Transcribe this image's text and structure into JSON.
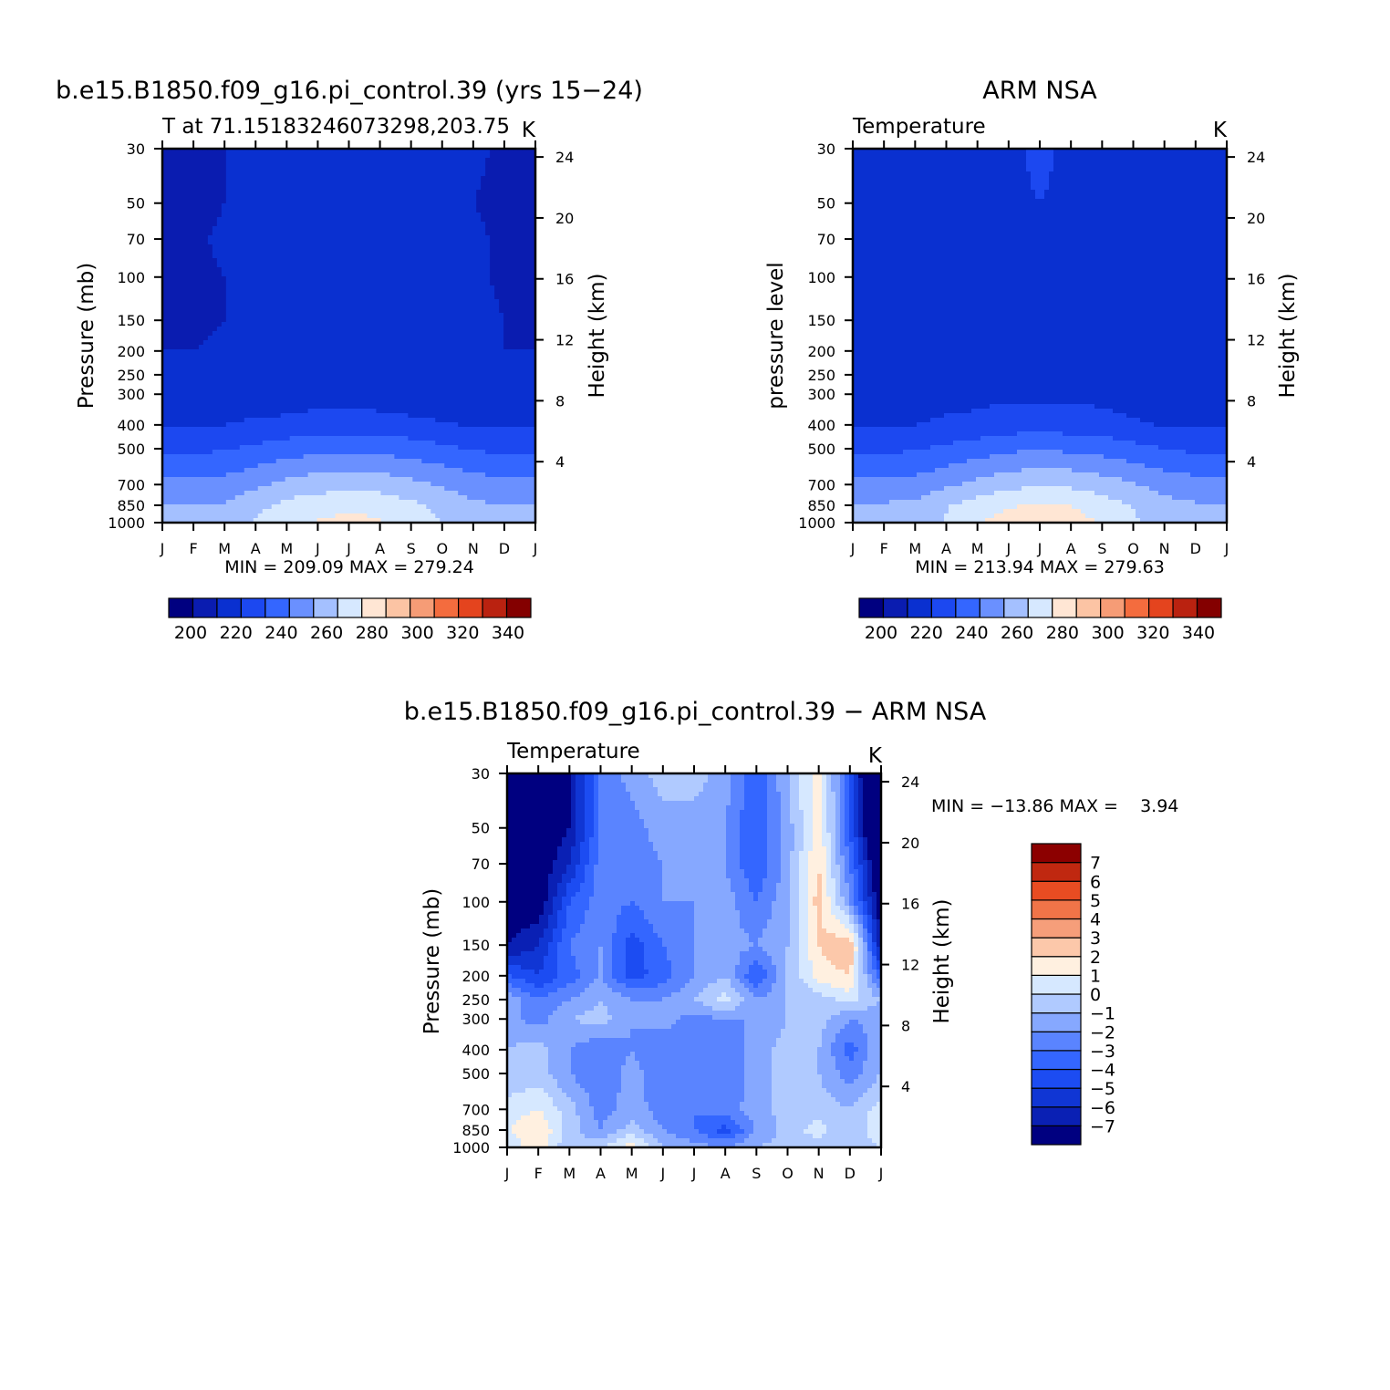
{
  "colors": {
    "abs_levels": [
      "#000080",
      "#0a1cb0",
      "#0a30d0",
      "#1c48f0",
      "#3466ff",
      "#6a90ff",
      "#a4c0ff",
      "#d6e8ff",
      "#ffe6d4",
      "#fcc4a4",
      "#f69c76",
      "#f46c3e",
      "#e4441e",
      "#ba2210",
      "#840000"
    ],
    "diff_levels": [
      "#000080",
      "#0a20b4",
      "#1036d4",
      "#1c4cf2",
      "#3466ff",
      "#5a84ff",
      "#86a8ff",
      "#b0caff",
      "#d6e8ff",
      "#fff0e0",
      "#fcc8aa",
      "#f69e7a",
      "#f07448",
      "#e84c22",
      "#c02810",
      "#8c0000"
    ]
  },
  "chart_data": [
    {
      "type": "heatmap",
      "title": "b.e15.B1850.f09_g16.pi_control.39 (yrs 15−24)",
      "subtitle_left": "T at 71.15183246073298,203.75",
      "subtitle_right": "K",
      "ylabel": "Pressure (mb)",
      "ylabel_right": "Height (km)",
      "x_ticks": [
        "J",
        "F",
        "M",
        "A",
        "M",
        "J",
        "J",
        "A",
        "S",
        "O",
        "N",
        "D",
        "J"
      ],
      "y_ticks": [
        "30",
        "50",
        "70",
        "100",
        "150",
        "200",
        "250",
        "300",
        "400",
        "500",
        "700",
        "850",
        "1000"
      ],
      "y_right_ticks": [
        "24",
        "20",
        "16",
        "12",
        "8",
        "4"
      ],
      "minmax": "MIN = 209.09 MAX = 279.24",
      "colorbar": {
        "orientation": "horizontal",
        "labels": [
          "200",
          "220",
          "240",
          "260",
          "280",
          "300",
          "320",
          "340"
        ]
      },
      "grid": false,
      "contour_data": {
        "x_months": [
          0,
          1,
          2,
          3,
          4,
          5,
          6,
          7,
          8,
          9,
          10,
          11,
          12
        ],
        "pressure_levels": [
          30,
          50,
          70,
          100,
          150,
          200,
          250,
          300,
          400,
          500,
          700,
          850,
          1000
        ],
        "values": [
          [
            208,
            212,
            215,
            220,
            221,
            221,
            220,
            220,
            220,
            219,
            216,
            214,
            208
          ],
          [
            210,
            213,
            215,
            220,
            222,
            222,
            222,
            222,
            221,
            219,
            215,
            214,
            210
          ],
          [
            212,
            214,
            216,
            219,
            222,
            222,
            222,
            222,
            221,
            219,
            216,
            214,
            212
          ],
          [
            213,
            214,
            215,
            218,
            221,
            222,
            222,
            221,
            220,
            218,
            216,
            214,
            213
          ],
          [
            214,
            214,
            215,
            219,
            223,
            223,
            223,
            223,
            222,
            220,
            217,
            215,
            214
          ],
          [
            215,
            215,
            216,
            218,
            223,
            224,
            224,
            224,
            222,
            219,
            217,
            215,
            215
          ],
          [
            216,
            216,
            216,
            217,
            218,
            220,
            220,
            219,
            217,
            216,
            216,
            216,
            216
          ],
          [
            217,
            217,
            218,
            218,
            219,
            220,
            220,
            219,
            218,
            218,
            217,
            217,
            217
          ],
          [
            224,
            224,
            225,
            227,
            228,
            230,
            230,
            230,
            228,
            226,
            224,
            224,
            224
          ],
          [
            233,
            233,
            234,
            237,
            240,
            242,
            243,
            242,
            240,
            237,
            234,
            233,
            233
          ],
          [
            248,
            248,
            249,
            253,
            258,
            261,
            262,
            261,
            258,
            254,
            250,
            248,
            248
          ],
          [
            255,
            255,
            256,
            262,
            268,
            270,
            272,
            271,
            267,
            262,
            257,
            255,
            255
          ],
          [
            258,
            258,
            259,
            266,
            272,
            276,
            279,
            276,
            271,
            265,
            259,
            258,
            258
          ]
        ]
      }
    },
    {
      "type": "heatmap",
      "title": "ARM NSA",
      "subtitle_left": "Temperature",
      "subtitle_right": "K",
      "ylabel": "pressure level",
      "ylabel_right": "Height (km)",
      "x_ticks": [
        "J",
        "F",
        "M",
        "A",
        "M",
        "J",
        "J",
        "A",
        "S",
        "O",
        "N",
        "D",
        "J"
      ],
      "y_ticks": [
        "30",
        "50",
        "70",
        "100",
        "150",
        "200",
        "250",
        "300",
        "400",
        "500",
        "700",
        "850",
        "1000"
      ],
      "y_right_ticks": [
        "24",
        "20",
        "16",
        "12",
        "8",
        "4"
      ],
      "minmax": "MIN = 213.94 MAX = 279.63",
      "colorbar": {
        "orientation": "horizontal",
        "labels": [
          "200",
          "220",
          "240",
          "260",
          "280",
          "300",
          "320",
          "340"
        ]
      },
      "grid": false,
      "contour_data": {
        "x_months": [
          0,
          1,
          2,
          3,
          4,
          5,
          6,
          7,
          8,
          9,
          10,
          11,
          12
        ],
        "pressure_levels": [
          30,
          50,
          70,
          100,
          150,
          200,
          250,
          300,
          400,
          500,
          700,
          850,
          1000
        ],
        "values": [
          [
            221,
            221,
            222,
            223,
            224,
            224,
            226,
            224,
            224,
            222,
            219,
            218,
            221
          ],
          [
            221,
            221,
            222,
            223,
            224,
            224,
            225,
            224,
            224,
            222,
            219,
            218,
            221
          ],
          [
            221,
            221,
            222,
            223,
            224,
            224,
            225,
            224,
            224,
            222,
            219,
            218,
            221
          ],
          [
            221,
            221,
            222,
            223,
            224,
            224,
            224,
            224,
            224,
            223,
            219,
            218,
            221
          ],
          [
            221,
            221,
            222,
            223,
            224,
            224,
            224,
            224,
            224,
            223,
            220,
            218,
            221
          ],
          [
            219,
            221,
            222,
            223,
            224,
            224,
            224,
            224,
            224,
            223,
            219,
            218,
            219
          ],
          [
            217,
            218,
            219,
            221,
            222,
            223,
            223,
            223,
            222,
            219,
            217,
            217,
            217
          ],
          [
            216,
            217,
            219,
            221,
            222,
            223,
            223,
            223,
            222,
            219,
            217,
            217,
            216
          ],
          [
            224,
            224,
            225,
            227,
            228,
            230,
            231,
            230,
            229,
            227,
            224,
            224,
            224
          ],
          [
            233,
            233,
            234,
            237,
            240,
            243,
            244,
            243,
            241,
            238,
            235,
            233,
            233
          ],
          [
            248,
            248,
            249,
            253,
            258,
            262,
            264,
            263,
            260,
            256,
            251,
            249,
            248
          ],
          [
            256,
            256,
            257,
            264,
            270,
            274,
            276,
            275,
            270,
            264,
            258,
            256,
            256
          ],
          [
            258,
            258,
            259,
            266,
            274,
            279,
            280,
            279,
            274,
            267,
            260,
            258,
            258
          ]
        ]
      }
    },
    {
      "type": "heatmap",
      "title": "b.e15.B1850.f09_g16.pi_control.39 − ARM NSA",
      "subtitle_left": "Temperature",
      "subtitle_right": "K",
      "ylabel": "Pressure (mb)",
      "ylabel_right": "Height (km)",
      "x_ticks": [
        "J",
        "F",
        "M",
        "A",
        "M",
        "J",
        "J",
        "A",
        "S",
        "O",
        "N",
        "D",
        "J"
      ],
      "y_ticks": [
        "30",
        "50",
        "70",
        "100",
        "150",
        "200",
        "250",
        "300",
        "400",
        "500",
        "700",
        "850",
        "1000"
      ],
      "y_right_ticks": [
        "24",
        "20",
        "16",
        "12",
        "8",
        "4"
      ],
      "minmax": "MIN = −13.86 MAX =    3.94",
      "colorbar": {
        "orientation": "vertical",
        "labels": [
          "7",
          "6",
          "5",
          "4",
          "3",
          "2",
          "1",
          "0",
          "−1",
          "−2",
          "−3",
          "−4",
          "−5",
          "−6",
          "−7"
        ]
      },
      "grid": false,
      "contour_data": {
        "x_months": [
          0,
          1,
          2,
          3,
          4,
          5,
          6,
          7,
          8,
          9,
          10,
          11,
          12
        ],
        "pressure_levels": [
          30,
          50,
          70,
          100,
          150,
          200,
          250,
          300,
          400,
          500,
          700,
          850,
          1000
        ],
        "values": [
          [
            -13,
            -9,
            -7,
            -3,
            -1.5,
            -0.5,
            -0.5,
            -1.5,
            -4,
            -1,
            1.5,
            -4,
            -13
          ],
          [
            -11,
            -8,
            -7,
            -3,
            -2.5,
            -1.5,
            -1.5,
            -2,
            -4,
            -1.5,
            1.8,
            -4,
            -11
          ],
          [
            -9,
            -8,
            -6,
            -2.5,
            -2.5,
            -2,
            -2,
            -2,
            -4,
            -1.5,
            2,
            -3,
            -9
          ],
          [
            -8,
            -8,
            -4,
            -2.5,
            -3,
            -2,
            -2,
            -1.5,
            -3,
            -1.2,
            2.5,
            -2,
            -8
          ],
          [
            -7,
            -6,
            -3,
            -2,
            -4.5,
            -3,
            -2,
            -1.5,
            -2,
            -1,
            2,
            3,
            -7
          ],
          [
            -4,
            -5,
            -3.5,
            -2,
            -4.5,
            -3.5,
            -2,
            -1,
            -4,
            -1,
            1.5,
            2,
            -4
          ],
          [
            -1,
            -3,
            -2,
            -1,
            -2,
            -2,
            -1,
            0.5,
            -2,
            -1,
            -0.5,
            0.5,
            -1
          ],
          [
            -1.5,
            -2.5,
            -1,
            -0.5,
            -2,
            -1.5,
            -2.5,
            -2,
            -2,
            -1,
            -0.5,
            -2,
            -1.5
          ],
          [
            -1,
            -0.5,
            -2,
            -3,
            -2,
            -3,
            -2,
            -3,
            -1.5,
            -0.5,
            -1,
            -3.5,
            -1
          ],
          [
            -1,
            -0.5,
            -2,
            -3,
            -1.5,
            -3,
            -2,
            -3,
            -1.5,
            -0.5,
            -1,
            -2.5,
            -1
          ],
          [
            0.5,
            1,
            -0.5,
            -2.5,
            -1.5,
            -2.5,
            -3,
            -2.5,
            -1.5,
            -0.5,
            -0.5,
            -1,
            0.5
          ],
          [
            1,
            2,
            -0.5,
            -2,
            -0.5,
            -2,
            -3,
            -4.5,
            -2,
            -0.5,
            0.5,
            -1,
            1
          ],
          [
            0,
            2,
            -1,
            0,
            1.5,
            -1,
            -1.5,
            -2,
            -1,
            -0.5,
            -0.5,
            -1,
            0
          ]
        ]
      }
    }
  ]
}
